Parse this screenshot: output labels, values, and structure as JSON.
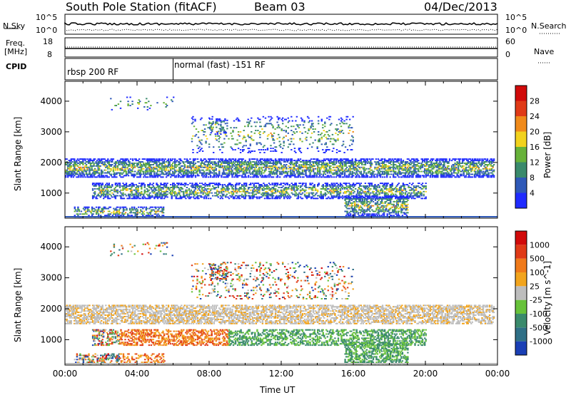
{
  "header": {
    "station": "South Pole Station (fitACF)",
    "beam": "Beam 03",
    "date": "04/Dec/2013"
  },
  "top_panels": {
    "nsky_label": "N.Sky",
    "nsearch_label": "N.Search",
    "nsky_ticks": [
      "10^5",
      "10^0"
    ],
    "nsearch_ticks": [
      "10^5",
      "10^0"
    ],
    "freq_label_line1": "Freq.",
    "freq_label_line2": "[MHz]",
    "freq_ticks": [
      "18",
      "8"
    ],
    "nave_label": "Nave",
    "nave_ticks": [
      "60",
      "0"
    ],
    "cpid_label": "CPID",
    "cpid_segments": [
      {
        "label": "rbsp 200 RF",
        "start_hour": 0,
        "end_hour": 6
      },
      {
        "label": "normal (fast) -151 RF",
        "start_hour": 6,
        "end_hour": 24
      }
    ]
  },
  "chart_data": [
    {
      "type": "heatmap",
      "name": "power",
      "xlabel": "",
      "ylabel": "Slant Range [km]",
      "xlim": [
        0,
        24
      ],
      "ylim": [
        180,
        4650
      ],
      "yticks": [
        "1000",
        "2000",
        "3000",
        "4000"
      ],
      "colorbar_label": "Power [dB]",
      "colorbar_ticks": [
        "4",
        "8",
        "12",
        "16",
        "20",
        "24",
        "28"
      ],
      "colorbar_colors": [
        "#1f2bff",
        "#2f59b8",
        "#3a8a6c",
        "#67b23a",
        "#f2d21d",
        "#f08a1a",
        "#e03a17",
        "#d10a0a"
      ]
    },
    {
      "type": "heatmap",
      "name": "velocity",
      "xlabel": "Time UT",
      "ylabel": "Slant Range [km]",
      "xlim": [
        0,
        24
      ],
      "ylim": [
        180,
        4650
      ],
      "xticks": [
        "00:00",
        "04:00",
        "08:00",
        "12:00",
        "16:00",
        "20:00",
        "00:00"
      ],
      "yticks": [
        "1000",
        "2000",
        "3000",
        "4000"
      ],
      "colorbar_label": "Velocity [m s^-1]",
      "colorbar_ticks": [
        "1000",
        "500",
        "100",
        "25",
        "-25",
        "-100",
        "-500",
        "-1000"
      ],
      "colorbar_colors": [
        "#1a3fb5",
        "#2f6f86",
        "#3a8a6c",
        "#67c23a",
        "#bdbdbd",
        "#f2a41d",
        "#f07a1a",
        "#e03a17",
        "#d10a0a"
      ]
    }
  ]
}
